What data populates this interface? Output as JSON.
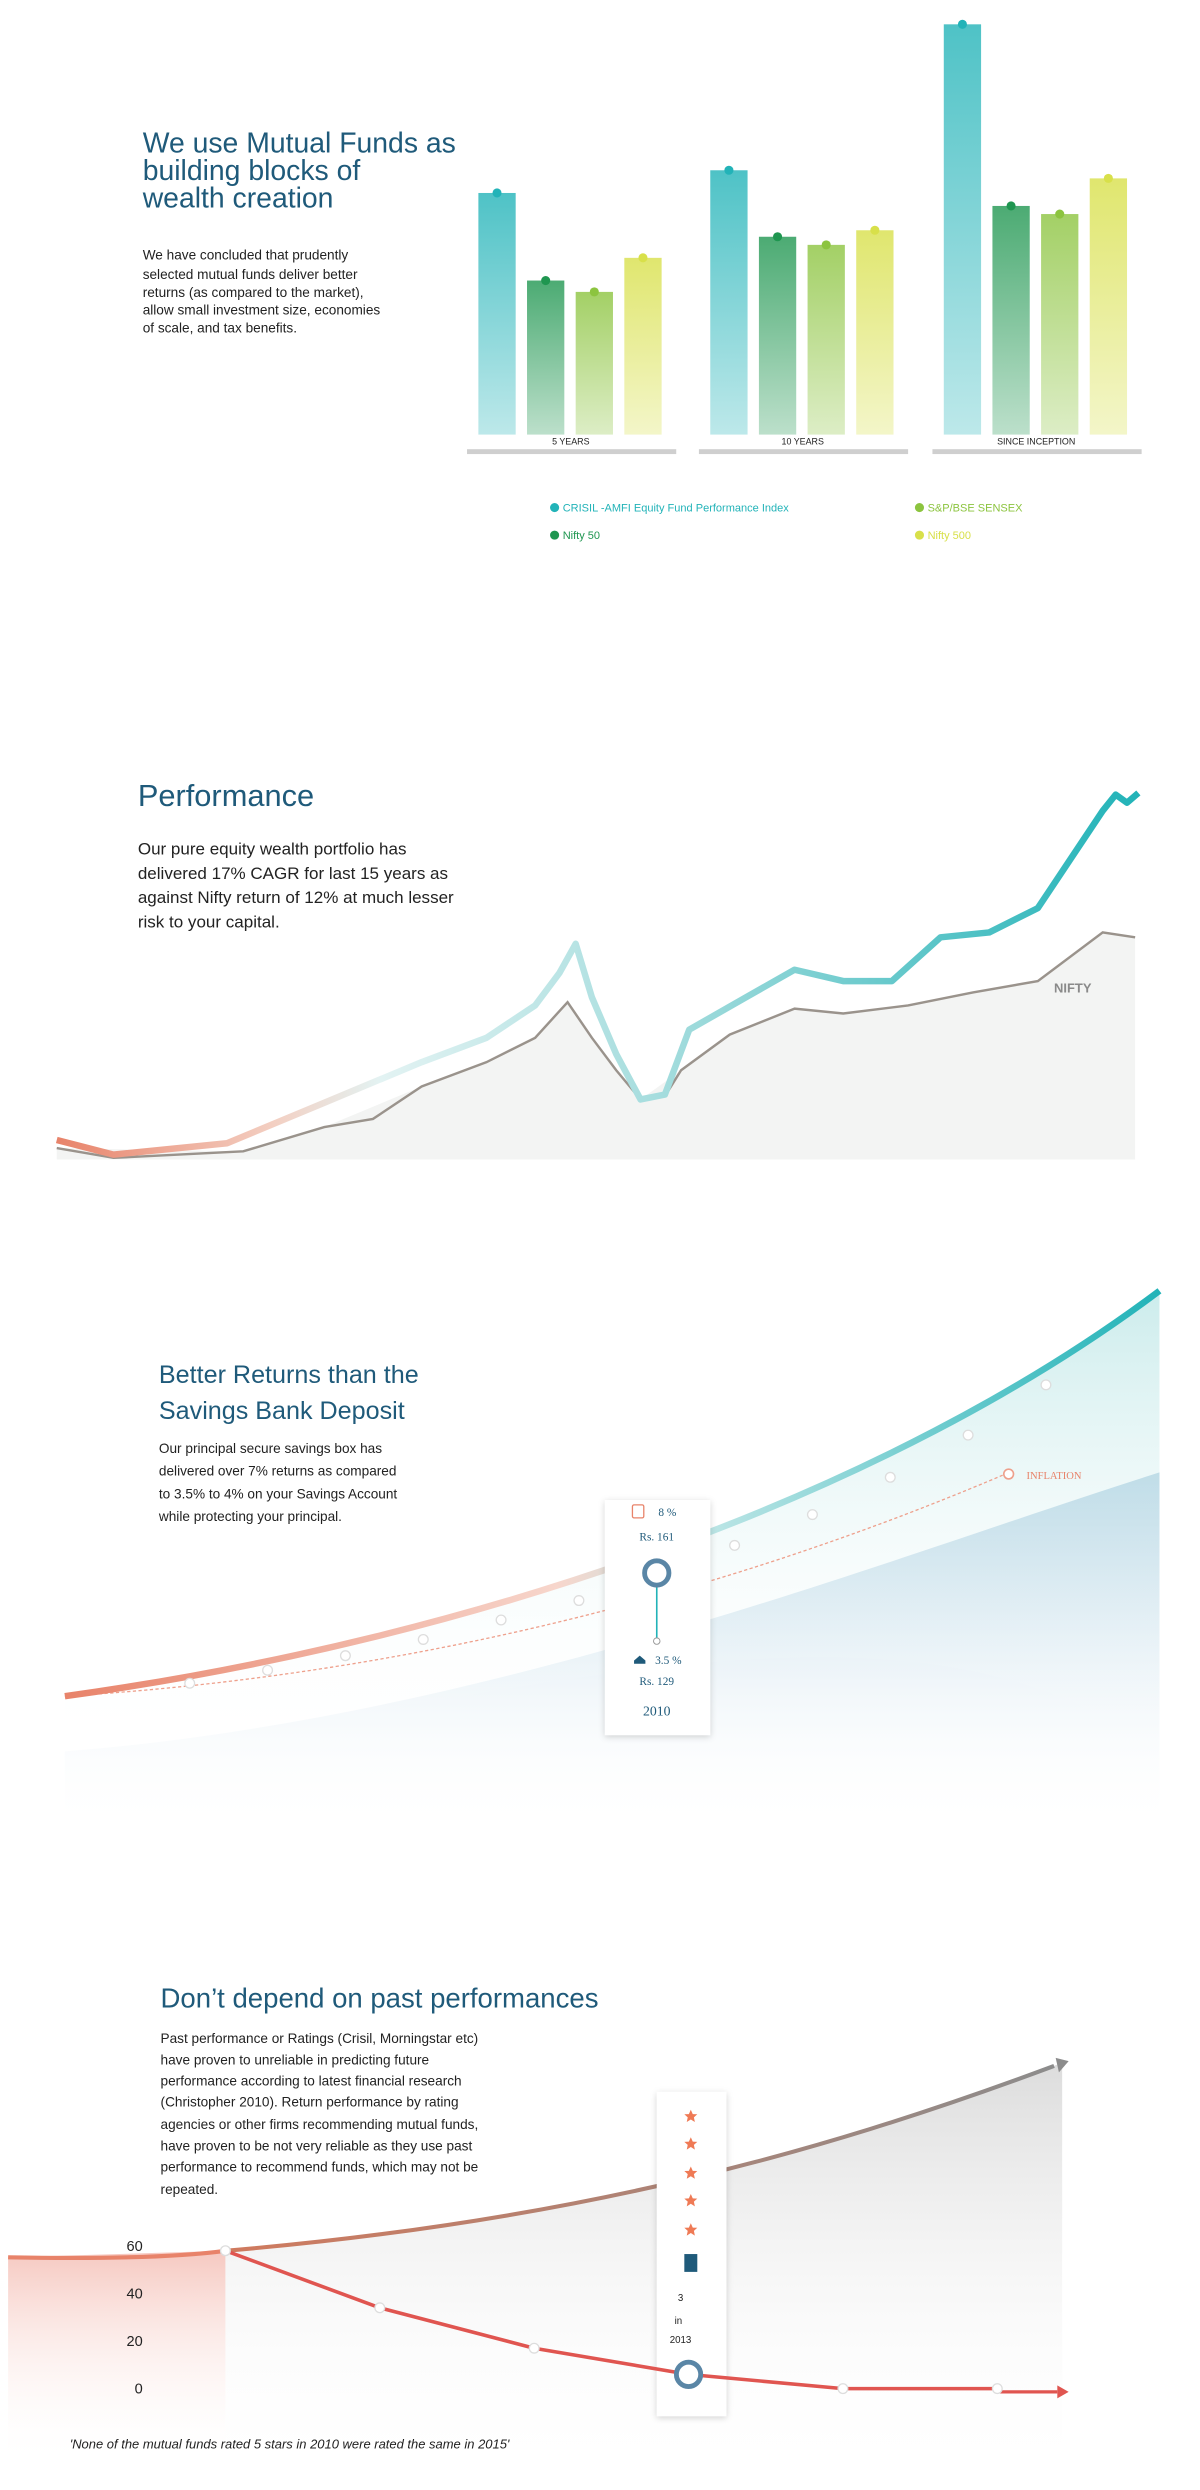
{
  "mutual_funds": {
    "title": [
      "We use Mutual Funds as",
      "building blocks of",
      "wealth creation"
    ],
    "body": [
      "We have concluded that prudently",
      "selected mutual funds deliver better",
      "returns (as compared to the market),",
      "allow small investment size, economies",
      "of scale, and tax benefits."
    ],
    "chart": {
      "type": "bar",
      "categories": [
        "5 YEARS",
        "10 YEARS",
        "SINCE INCEPTION"
      ],
      "series": [
        {
          "name": "CRISIL -AMFI Equity Fund Performance Index",
          "color": "#22b3b8",
          "values": [
            149,
            163,
            253
          ]
        },
        {
          "name": "Nifty 50",
          "color": "#1f9650",
          "values": [
            95,
            122,
            141
          ]
        },
        {
          "name": "S&P/BSE SENSEX",
          "color": "#8cc43f",
          "values": [
            88,
            117,
            136
          ]
        },
        {
          "name": "Nifty 500",
          "color": "#d8e04a",
          "values": [
            109,
            126,
            158
          ]
        }
      ]
    }
  },
  "performance": {
    "title": "Performance",
    "body": [
      "Our pure equity wealth portfolio has",
      "delivered 17% CAGR for last 15 years as",
      "against Nifty return of 12% at much lesser",
      "risk to your capital."
    ],
    "line_label": "NIFTY"
  },
  "savings": {
    "title": [
      "Better Returns than the",
      "Savings Bank Deposit"
    ],
    "body": [
      "Our principal secure savings box has",
      "delivered over 7% returns as compared",
      "to 3.5% to 4% on your Savings Account",
      "while protecting your principal."
    ],
    "inflation_label": "INFLATION",
    "card": {
      "top_rate": "8 %",
      "top_amount": "Rs. 161",
      "bottom_rate": "3.5 %",
      "bottom_amount": "Rs. 129",
      "year": "2010"
    }
  },
  "past_performance": {
    "title": "Don’t depend on past performances",
    "body": [
      "Past performance or Ratings (Crisil, Morningstar etc)",
      "have proven to unreliable in predicting future",
      "performance according to latest financial research",
      "(Christopher 2010). Return performance by rating",
      "agencies or other firms recommending mutual funds,",
      "have proven to be not very reliable as they use past",
      "performance to recommend funds, which may not be",
      "repeated."
    ],
    "card": [
      "3",
      "in",
      "2013"
    ],
    "quote": "'None of the mutual funds rated 5 stars in 2010 were rated the same in 2015'",
    "chart": {
      "type": "line",
      "categories": [
        null,
        null,
        null,
        null,
        null,
        null
      ],
      "series": [
        {
          "color": "#e05550",
          "values": [
            58,
            34,
            17,
            6,
            0,
            0
          ]
        }
      ],
      "ylim": [
        0,
        60
      ],
      "yticks": [
        60,
        40,
        20,
        0
      ]
    }
  }
}
